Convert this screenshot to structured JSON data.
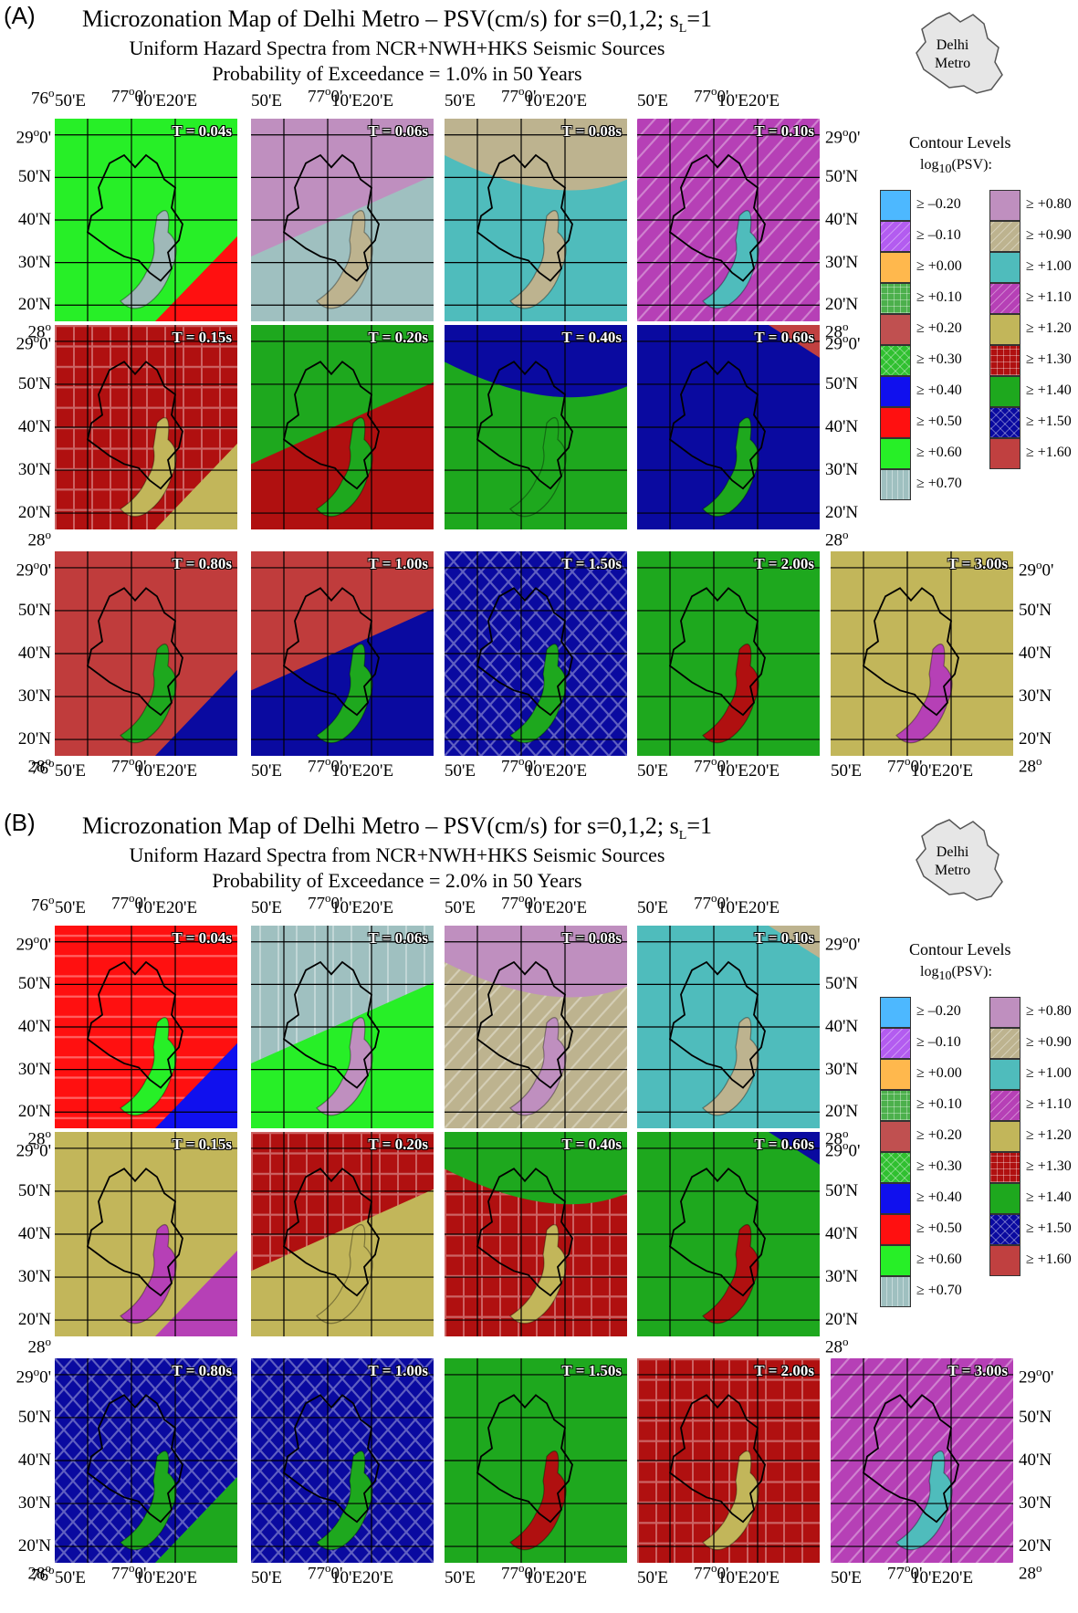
{
  "figure": {
    "panels": [
      {
        "id": "A",
        "label": "(A)",
        "title_line1": "Microzonation Map of Delhi Metro – PSV(cm/s) for s=0,1,2; s",
        "title_line1_sub": "L",
        "title_line1_tail": "=1",
        "title_line2": "Uniform Hazard Spectra from NCR+NWH+HKS Seismic Sources",
        "title_line3": "Probability of Exceedance =  1.0% in 50 Years",
        "inset_label_1": "Delhi",
        "inset_label_2": "Metro",
        "tiles": [
          {
            "period": "T = 0.04s",
            "base": "#27ef27",
            "pattern": "none",
            "patch": "#9fb8b8",
            "corner": "#ff1010"
          },
          {
            "period": "T = 0.06s",
            "base": "#bf8fbf",
            "pattern": "none",
            "patch": "#bdb38f",
            "corner": "#9fc0c0"
          },
          {
            "period": "T = 0.08s",
            "base": "#4fbcbc",
            "pattern": "none",
            "patch": "#bdb38f",
            "corner": "#bdb38f"
          },
          {
            "period": "T = 0.10s",
            "base": "#b640b6",
            "pattern": "diag",
            "patch": "#4fbcbc",
            "corner": "#b640b6"
          },
          {
            "period": "T = 0.15s",
            "base": "#b01010",
            "pattern": "grid",
            "patch": "#c2b65a",
            "corner": "#c2b65a"
          },
          {
            "period": "T = 0.20s",
            "base": "#1ea81e",
            "pattern": "none",
            "patch": "#1ea81e",
            "corner": "#b01010"
          },
          {
            "period": "T = 0.40s",
            "base": "#1ea81e",
            "pattern": "none",
            "patch": "#1ea81e",
            "corner": "#0a0aa0"
          },
          {
            "period": "T = 0.60s",
            "base": "#0a0aa0",
            "pattern": "none",
            "patch": "#1ea81e",
            "corner": "#c04040"
          },
          {
            "period": "T = 0.80s",
            "base": "#c03c3c",
            "pattern": "none",
            "patch": "#1ea81e",
            "corner": "#0a0aa0"
          },
          {
            "period": "T = 1.00s",
            "base": "#c03c3c",
            "pattern": "none",
            "patch": "#1ea81e",
            "corner": "#0a0aa0"
          },
          {
            "period": "T = 1.50s",
            "base": "#0a0aa0",
            "pattern": "cross",
            "patch": "#1ea81e",
            "corner": "#0a0aa0"
          },
          {
            "period": "T = 2.00s",
            "base": "#1ea81e",
            "pattern": "none",
            "patch": "#b01010",
            "corner": "#1ea81e"
          },
          {
            "period": "T = 3.00s",
            "base": "#c2b65a",
            "pattern": "none",
            "patch": "#b640b6",
            "corner": "#c2b65a"
          }
        ]
      },
      {
        "id": "B",
        "label": "(B)",
        "title_line1": "Microzonation Map of Delhi Metro – PSV(cm/s) for s=0,1,2; s",
        "title_line1_sub": "L",
        "title_line1_tail": "=1",
        "title_line2": "Uniform Hazard Spectra from NCR+NWH+HKS Seismic Sources",
        "title_line3": "Probability of Exceedance =  2.0% in 50 Years",
        "inset_label_1": "Delhi",
        "inset_label_2": "Metro",
        "tiles": [
          {
            "period": "T = 0.04s",
            "base": "#ff1010",
            "pattern": "hlines",
            "patch": "#27ef27",
            "corner": "#1010ee"
          },
          {
            "period": "T = 0.06s",
            "base": "#9fc0c0",
            "pattern": "vlines",
            "patch": "#bf8fbf",
            "corner": "#27ef27"
          },
          {
            "period": "T = 0.08s",
            "base": "#bdb38f",
            "pattern": "diag",
            "patch": "#bf8fbf",
            "corner": "#bf8fbf"
          },
          {
            "period": "T = 0.10s",
            "base": "#4fbcbc",
            "pattern": "none",
            "patch": "#bdb38f",
            "corner": "#bdb38f"
          },
          {
            "period": "T = 0.15s",
            "base": "#c2b65a",
            "pattern": "none",
            "patch": "#b640b6",
            "corner": "#b640b6"
          },
          {
            "period": "T = 0.20s",
            "base": "#b01010",
            "pattern": "grid",
            "patch": "#c2b65a",
            "corner": "#c2b65a"
          },
          {
            "period": "T = 0.40s",
            "base": "#b01010",
            "pattern": "grid",
            "patch": "#c2b65a",
            "corner": "#1ea81e"
          },
          {
            "period": "T = 0.60s",
            "base": "#1ea81e",
            "pattern": "none",
            "patch": "#b01010",
            "corner": "#0a0aa0"
          },
          {
            "period": "T = 0.80s",
            "base": "#0a0aa0",
            "pattern": "cross",
            "patch": "#1ea81e",
            "corner": "#1ea81e"
          },
          {
            "period": "T = 1.00s",
            "base": "#0a0aa0",
            "pattern": "cross",
            "patch": "#1ea81e",
            "corner": "#0a0aa0"
          },
          {
            "period": "T = 1.50s",
            "base": "#1ea81e",
            "pattern": "none",
            "patch": "#b01010",
            "corner": "#1ea81e"
          },
          {
            "period": "T = 2.00s",
            "base": "#b01010",
            "pattern": "grid",
            "patch": "#c2b65a",
            "corner": "#b01010"
          },
          {
            "period": "T = 3.00s",
            "base": "#b640b6",
            "pattern": "diag",
            "patch": "#4fbcbc",
            "corner": "#b640b6"
          }
        ]
      }
    ],
    "axis_labels": {
      "lat": [
        "29°0'",
        "50'N",
        "40'N",
        "30'N",
        "20'N",
        "28°"
      ],
      "lat_top": "29",
      "lat_top_sup": "o",
      "lat_top_tail": "0'",
      "lat_bottom": "28",
      "lat_bottom_sup": "o",
      "lon_left": "76",
      "lon_left_sup": "o",
      "lon_50": "50'E",
      "lon_77": "77",
      "lon_77_sup": "o",
      "lon_77_tail": "0'",
      "lon_10_20": "10'E20'E"
    },
    "legend": {
      "title": "Contour Levels",
      "subtitle_pre": "log",
      "subtitle_sub": "10",
      "subtitle_post": "(PSV):",
      "left": [
        {
          "label": "≥ –0.20",
          "color": "#4db8ff",
          "pattern": "none"
        },
        {
          "label": "≥ –0.10",
          "color": "#b35cf0",
          "pattern": "diag"
        },
        {
          "label": "≥ +0.00",
          "color": "#ffb84d",
          "pattern": "none"
        },
        {
          "label": "≥ +0.10",
          "color": "#4cb04c",
          "pattern": "grid"
        },
        {
          "label": "≥ +0.20",
          "color": "#c05050",
          "pattern": "none"
        },
        {
          "label": "≥ +0.30",
          "color": "#30c030",
          "pattern": "cross"
        },
        {
          "label": "≥ +0.40",
          "color": "#1010ee",
          "pattern": "none"
        },
        {
          "label": "≥ +0.50",
          "color": "#ff1010",
          "pattern": "none"
        },
        {
          "label": "≥ +0.60",
          "color": "#27ef27",
          "pattern": "none"
        },
        {
          "label": "≥ +0.70",
          "color": "#9fc0c0",
          "pattern": "vlines"
        }
      ],
      "right": [
        {
          "label": "≥ +0.80",
          "color": "#bf8fbf",
          "pattern": "none"
        },
        {
          "label": "≥ +0.90",
          "color": "#bdb38f",
          "pattern": "diag"
        },
        {
          "label": "≥ +1.00",
          "color": "#4fbcbc",
          "pattern": "none"
        },
        {
          "label": "≥ +1.10",
          "color": "#b640b6",
          "pattern": "diag"
        },
        {
          "label": "≥ +1.20",
          "color": "#c2b65a",
          "pattern": "none"
        },
        {
          "label": "≥ +1.30",
          "color": "#b01010",
          "pattern": "grid"
        },
        {
          "label": "≥ +1.40",
          "color": "#1ea81e",
          "pattern": "none"
        },
        {
          "label": "≥ +1.50",
          "color": "#0a0aa0",
          "pattern": "cross"
        },
        {
          "label": "≥ +1.60",
          "color": "#c04040",
          "pattern": "none"
        }
      ]
    }
  }
}
